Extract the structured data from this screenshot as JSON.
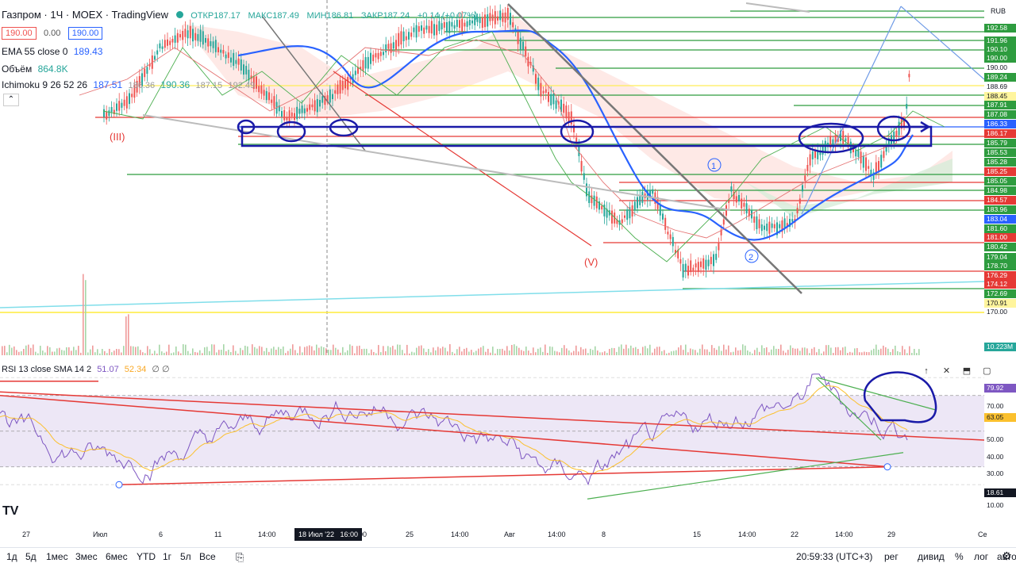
{
  "legend": {
    "symbol": "Газпром",
    "interval": "1Ч",
    "exchange": "MOEX",
    "source": "TradingView",
    "open": "ОТКР187.17",
    "high": "МАКС187.49",
    "low": "МИН186.81",
    "close": "ЗАКР187.24",
    "change": "+0.14 (+0.07%)",
    "bid": "190.00",
    "spread": "0.00",
    "ask": "190.00",
    "ema_label": "EMA 55 close 0",
    "ema_value": "189.43",
    "volume_label": "Объём",
    "volume_value": "864.8K",
    "ichimoku_label": "Ichimoku 9 26 52 26",
    "ichimoku_v1": "187.51",
    "ichimoku_v2": "186.36",
    "ichimoku_v3": "190.36",
    "ichimoku_v4": "187.15",
    "ichimoku_v5": "192.49"
  },
  "price_scale": {
    "currency": "RUB",
    "labels": [
      {
        "text": "192.58",
        "color": "green"
      },
      {
        "text": "191.96",
        "color": "green"
      },
      {
        "text": "190.10",
        "color": "green"
      },
      {
        "text": "190.00",
        "color": "green"
      },
      {
        "text": "190.00",
        "color": "plain"
      },
      {
        "text": "189.24",
        "color": "green"
      },
      {
        "text": "188.69",
        "color": "plain"
      },
      {
        "text": "188.45",
        "color": "yellow"
      },
      {
        "text": "187.91",
        "color": "green"
      },
      {
        "text": "187.08",
        "color": "green"
      },
      {
        "text": "186.33",
        "color": "blue"
      },
      {
        "text": "186.17",
        "color": "red"
      },
      {
        "text": "185.79",
        "color": "green"
      },
      {
        "text": "185.53",
        "color": "green"
      },
      {
        "text": "185.28",
        "color": "green"
      },
      {
        "text": "185.25",
        "color": "red"
      },
      {
        "text": "185.05",
        "color": "green"
      },
      {
        "text": "184.98",
        "color": "green"
      },
      {
        "text": "184.57",
        "color": "red"
      },
      {
        "text": "183.96",
        "color": "green"
      },
      {
        "text": "183.04",
        "color": "blue"
      },
      {
        "text": "181.60",
        "color": "green"
      },
      {
        "text": "181.00",
        "color": "red"
      },
      {
        "text": "180.42",
        "color": "green"
      },
      {
        "text": "179.04",
        "color": "green"
      },
      {
        "text": "178.70",
        "color": "green"
      },
      {
        "text": "176.29",
        "color": "red"
      },
      {
        "text": "174.12",
        "color": "red"
      },
      {
        "text": "172.69",
        "color": "green"
      },
      {
        "text": "170.91",
        "color": "yellow"
      },
      {
        "text": "170.00",
        "color": "plain"
      },
      {
        "text": "10.223M",
        "color": "teal"
      }
    ]
  },
  "annotations": {
    "wave_iii": "(III)",
    "wave_v": "(V)",
    "wave_1": "1",
    "wave_2": "2"
  },
  "rsi": {
    "label": "RSI 13 close SMA 14 2",
    "value1": "51.07",
    "value2": "52.34",
    "value3": "∅ ∅",
    "scale": [
      {
        "text": "79.92",
        "color": "purple"
      },
      {
        "text": "70.00",
        "color": "plain"
      },
      {
        "text": "63.05",
        "color": "yellow"
      },
      {
        "text": "50.00",
        "color": "plain"
      },
      {
        "text": "40.00",
        "color": "plain"
      },
      {
        "text": "30.00",
        "color": "plain"
      },
      {
        "text": "18.61",
        "color": "dark"
      },
      {
        "text": "10.00",
        "color": "plain"
      }
    ]
  },
  "time_axis": {
    "labels": [
      "27",
      "Июл",
      "6",
      "11",
      "14:00",
      "00",
      "25",
      "14:00",
      "Авг",
      "14:00",
      "8",
      "15",
      "14:00",
      "22",
      "14:00",
      "29",
      "Се"
    ],
    "crosshair_date": "18 Июл '22",
    "crosshair_time": "16:00"
  },
  "toolbar": {
    "ranges": [
      "1д",
      "5д",
      "1мес",
      "3мес",
      "6мес",
      "YTD",
      "1г",
      "5л",
      "Все"
    ],
    "time": "20:59:33 (UTC+3)",
    "options": [
      "рег",
      "дивид",
      "%",
      "лог",
      "авто"
    ]
  },
  "logo": "TV"
}
